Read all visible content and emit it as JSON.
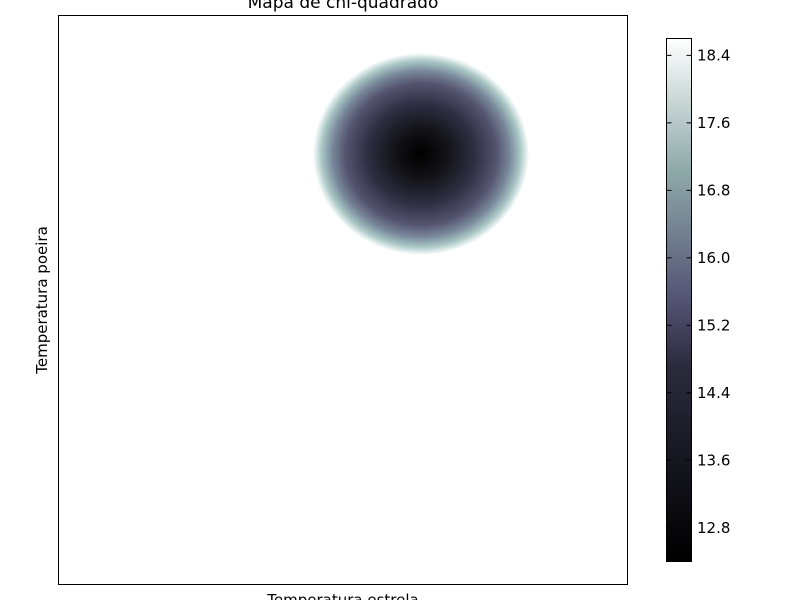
{
  "chart_data": {
    "type": "heatmap",
    "title": "Mapa de chi-quadrado",
    "xlabel": "Temperatura estrela",
    "ylabel": "Temperatura poeira",
    "x_ticks": [],
    "y_ticks": [],
    "colormap": "bone",
    "colorbar": {
      "range": [
        12.4,
        18.6
      ],
      "ticks": [
        "12.8",
        "13.6",
        "14.4",
        "15.2",
        "16.0",
        "16.8",
        "17.6",
        "18.4"
      ]
    },
    "data_summary": {
      "minimum_value": 12.4,
      "minimum_location": "upper-right",
      "values_above_colorbar_max": "blank (white)"
    }
  }
}
